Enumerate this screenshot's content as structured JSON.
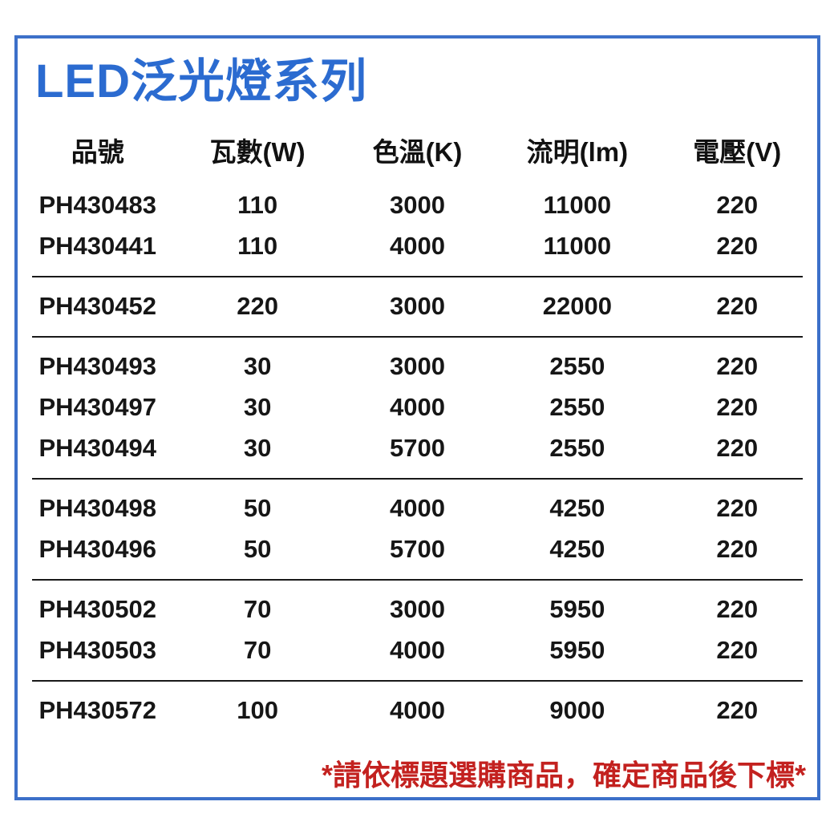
{
  "page": {
    "title": "LED泛光燈系列",
    "note": "*請依標題選購商品，確定商品後下標*"
  },
  "colors": {
    "border_blue": "#3c70c9",
    "title_blue": "#2b6bd0",
    "note_red": "#c3211f",
    "text_black": "#161616",
    "divider_black": "#191919",
    "background": "#ffffff"
  },
  "table": {
    "headers": [
      "品號",
      "瓦數(W)",
      "色溫(K)",
      "流明(lm)",
      "電壓(V)"
    ],
    "groups": [
      {
        "rows": [
          [
            "PH430483",
            "110",
            "3000",
            "11000",
            "220"
          ],
          [
            "PH430441",
            "110",
            "4000",
            "11000",
            "220"
          ]
        ]
      },
      {
        "rows": [
          [
            "PH430452",
            "220",
            "3000",
            "22000",
            "220"
          ]
        ]
      },
      {
        "rows": [
          [
            "PH430493",
            "30",
            "3000",
            "2550",
            "220"
          ],
          [
            "PH430497",
            "30",
            "4000",
            "2550",
            "220"
          ],
          [
            "PH430494",
            "30",
            "5700",
            "2550",
            "220"
          ]
        ]
      },
      {
        "rows": [
          [
            "PH430498",
            "50",
            "4000",
            "4250",
            "220"
          ],
          [
            "PH430496",
            "50",
            "5700",
            "4250",
            "220"
          ]
        ]
      },
      {
        "rows": [
          [
            "PH430502",
            "70",
            "3000",
            "5950",
            "220"
          ],
          [
            "PH430503",
            "70",
            "4000",
            "5950",
            "220"
          ]
        ]
      },
      {
        "rows": [
          [
            "PH430572",
            "100",
            "4000",
            "9000",
            "220"
          ]
        ]
      }
    ]
  }
}
